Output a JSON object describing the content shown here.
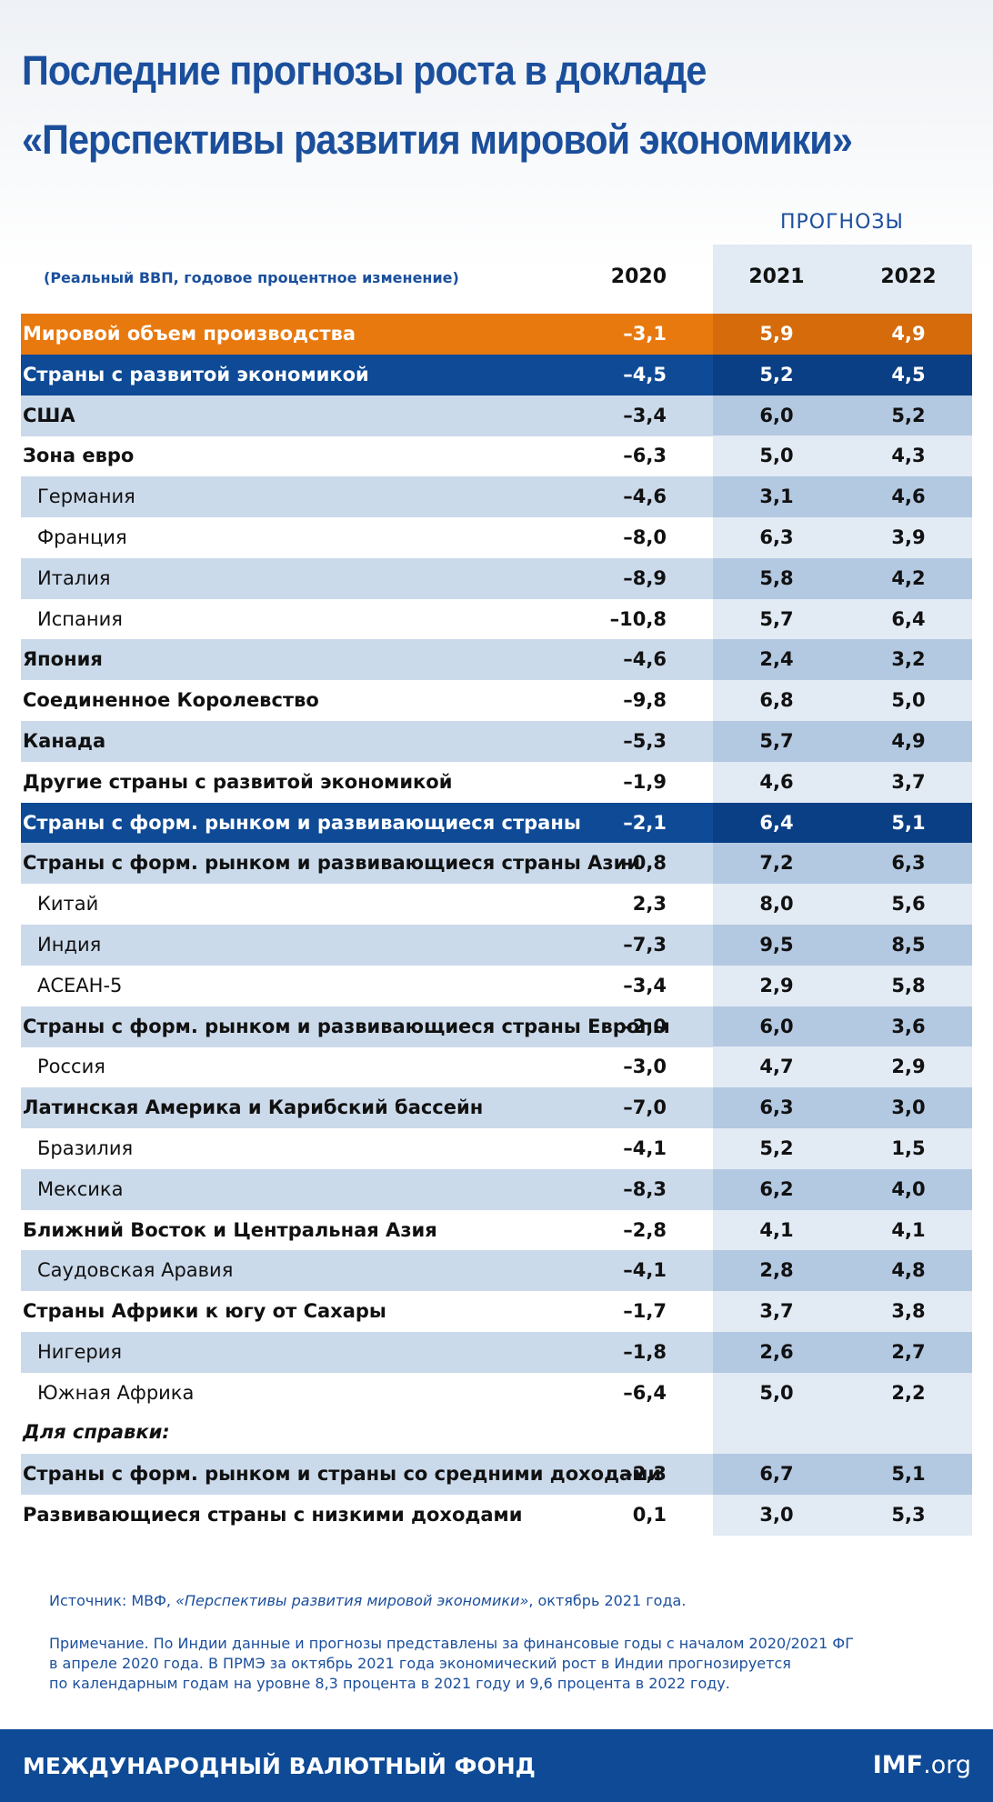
{
  "header": {
    "title_lines": [
      "Последние прогнозы роста в докладе",
      "«Перспективы развития мировой экономики»"
    ],
    "subtitle": "(Реальный ВВП, годовое процентное изменение)",
    "forecast_label": "ПРОГНОЗЫ",
    "years": [
      "2020",
      "2021",
      "2022"
    ]
  },
  "table": {
    "rows": [
      {
        "name": "Мировой объем производства",
        "values": [
          "–3,1",
          "5,9",
          "4,9"
        ]
      },
      {
        "name": "Страны с развитой экономикой",
        "values": [
          "–4,5",
          "5,2",
          "4,5"
        ]
      },
      {
        "name": "США",
        "values": [
          "–3,4",
          "6,0",
          "5,2"
        ]
      },
      {
        "name": "Зона евро",
        "values": [
          "–6,3",
          "5,0",
          "4,3"
        ]
      },
      {
        "name": "Германия",
        "values": [
          "–4,6",
          "3,1",
          "4,6"
        ]
      },
      {
        "name": "Франция",
        "values": [
          "–8,0",
          "6,3",
          "3,9"
        ]
      },
      {
        "name": "Италия",
        "values": [
          "–8,9",
          "5,8",
          "4,2"
        ]
      },
      {
        "name": "Испания",
        "values": [
          "–10,8",
          "5,7",
          "6,4"
        ]
      },
      {
        "name": "Япония",
        "values": [
          "–4,6",
          "2,4",
          "3,2"
        ]
      },
      {
        "name": "Соединенное Королевство",
        "values": [
          "–9,8",
          "6,8",
          "5,0"
        ]
      },
      {
        "name": "Канада",
        "values": [
          "–5,3",
          "5,7",
          "4,9"
        ]
      },
      {
        "name": "Другие страны с развитой экономикой",
        "values": [
          "–1,9",
          "4,6",
          "3,7"
        ]
      },
      {
        "name": "Страны с форм. рынком и развивающиеся страны",
        "values": [
          "–2,1",
          "6,4",
          "5,1"
        ]
      },
      {
        "name": "Страны с форм. рынком и развивающиеся страны Азии",
        "values": [
          "–0,8",
          "7,2",
          "6,3"
        ]
      },
      {
        "name": "Китай",
        "values": [
          "2,3",
          "8,0",
          "5,6"
        ]
      },
      {
        "name": "Индия",
        "values": [
          "–7,3",
          "9,5",
          "8,5"
        ]
      },
      {
        "name": "АСЕАН-5",
        "values": [
          "–3,4",
          "2,9",
          "5,8"
        ]
      },
      {
        "name": "Страны с форм. рынком и развивающиеся страны Европы",
        "values": [
          "–2,0",
          "6,0",
          "3,6"
        ]
      },
      {
        "name": "Россия",
        "values": [
          "–3,0",
          "4,7",
          "2,9"
        ]
      },
      {
        "name": "Латинская Америка и Карибский бассейн",
        "values": [
          "–7,0",
          "6,3",
          "3,0"
        ]
      },
      {
        "name": "Бразилия",
        "values": [
          "–4,1",
          "5,2",
          "1,5"
        ]
      },
      {
        "name": "Мексика",
        "values": [
          "–8,3",
          "6,2",
          "4,0"
        ]
      },
      {
        "name": "Ближний Восток и Центральная Азия",
        "values": [
          "–2,8",
          "4,1",
          "4,1"
        ]
      },
      {
        "name": "Саудовская Аравия",
        "values": [
          "–4,1",
          "2,8",
          "4,8"
        ]
      },
      {
        "name": "Страны Африки к югу от Сахары",
        "values": [
          "–1,7",
          "3,7",
          "3,8"
        ]
      },
      {
        "name": "Нигерия",
        "values": [
          "–1,8",
          "2,6",
          "2,7"
        ]
      },
      {
        "name": "Южная Африка",
        "values": [
          "–6,4",
          "5,0",
          "2,2"
        ]
      }
    ],
    "memo_label": "Для справки:",
    "memo_rows": [
      {
        "name": "Страны с форм. рынком и страны со средними доходами",
        "values": [
          "–2,3",
          "6,7",
          "5,1"
        ]
      },
      {
        "name": "Развивающиеся страны с низкими доходами",
        "values": [
          "0,1",
          "3,0",
          "5,3"
        ]
      }
    ]
  },
  "notes": {
    "source": {
      "prefix": "Источник: МВФ, ",
      "italic": "«Перспективы развития мировой экономики»",
      "suffix": ", октябрь 2021 года."
    },
    "note_lines": [
      "Примечание. По Индии данные и прогнозы представлены за финансовые годы с началом 2020/2021 ФГ",
      "в апреле 2020 года. В ПРМЭ за октябрь 2021 года экономический рост в Индии  прогнозируется",
      "по календарным годам на уровне 8,3 процента в 2021 году и 9,6 процента в 2022 году."
    ]
  },
  "footer": {
    "organization": "МЕЖДУНАРОДНЫЙ ВАЛЮТНЫЙ ФОНД",
    "brand": "IMF",
    "domain": ".org"
  }
}
